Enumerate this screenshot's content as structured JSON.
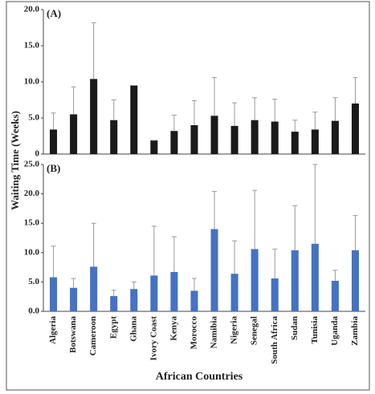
{
  "chart_data": [
    {
      "type": "bar",
      "panel_label": "(A)",
      "ylabel": "Waiting Time (Weeks)",
      "color": "#1a1a1a",
      "error_color": "#9a9a9a",
      "categories": [
        "Algeria",
        "Botswana",
        "Cameroon",
        "Egypt",
        "Ghana",
        "Ivory Coast",
        "Kenya",
        "Morocco",
        "Namibia",
        "Nigeria",
        "Senegal",
        "South Africa",
        "Sudan",
        "Tunisia",
        "Uganda",
        "Zambia"
      ],
      "values": [
        3.4,
        5.5,
        10.4,
        4.7,
        9.5,
        1.9,
        3.2,
        4.0,
        5.3,
        3.9,
        4.7,
        4.5,
        3.1,
        3.4,
        4.6,
        7.0
      ],
      "errors": [
        2.3,
        3.8,
        7.8,
        2.8,
        0,
        0,
        2.2,
        3.4,
        5.3,
        3.2,
        3.1,
        3.1,
        1.6,
        2.4,
        3.2,
        3.6
      ],
      "ylim": [
        0,
        20
      ],
      "yticks": [
        0,
        {
          "value": 5,
          "label": "5.0"
        },
        {
          "value": 10,
          "label": "10.0"
        },
        {
          "value": 15,
          "label": "15.0"
        },
        {
          "value": 20,
          "label": "20.0"
        }
      ]
    },
    {
      "type": "bar",
      "panel_label": "(B)",
      "xlabel": "African Countries",
      "color": "#4472c4",
      "error_color": "#9a9a9a",
      "categories": [
        "Algeria",
        "Botswana",
        "Cameroon",
        "Egypt",
        "Ghana",
        "Ivory Coast",
        "Kenya",
        "Morocco",
        "Namibia",
        "Nigeria",
        "Senegal",
        "South Africa",
        "Sudan",
        "Tunisia",
        "Uganda",
        "Zambia"
      ],
      "values": [
        5.8,
        4.0,
        7.6,
        2.6,
        3.8,
        6.1,
        6.7,
        3.5,
        14.0,
        6.4,
        10.6,
        5.6,
        10.4,
        11.5,
        5.2,
        10.4
      ],
      "errors": [
        5.3,
        1.6,
        7.4,
        1.0,
        1.2,
        8.4,
        6.0,
        2.1,
        6.4,
        5.6,
        10.0,
        5.0,
        7.6,
        13.5,
        1.8,
        5.9
      ],
      "ylim": [
        0,
        25
      ],
      "yticks": [
        {
          "value": 0,
          "label": "0.0"
        },
        {
          "value": 5,
          "label": "5.0"
        },
        {
          "value": 10,
          "label": "10.0"
        },
        {
          "value": 15,
          "label": "15.0"
        },
        {
          "value": 20,
          "label": "20.0"
        },
        {
          "value": 25,
          "label": "25.0"
        }
      ]
    }
  ]
}
